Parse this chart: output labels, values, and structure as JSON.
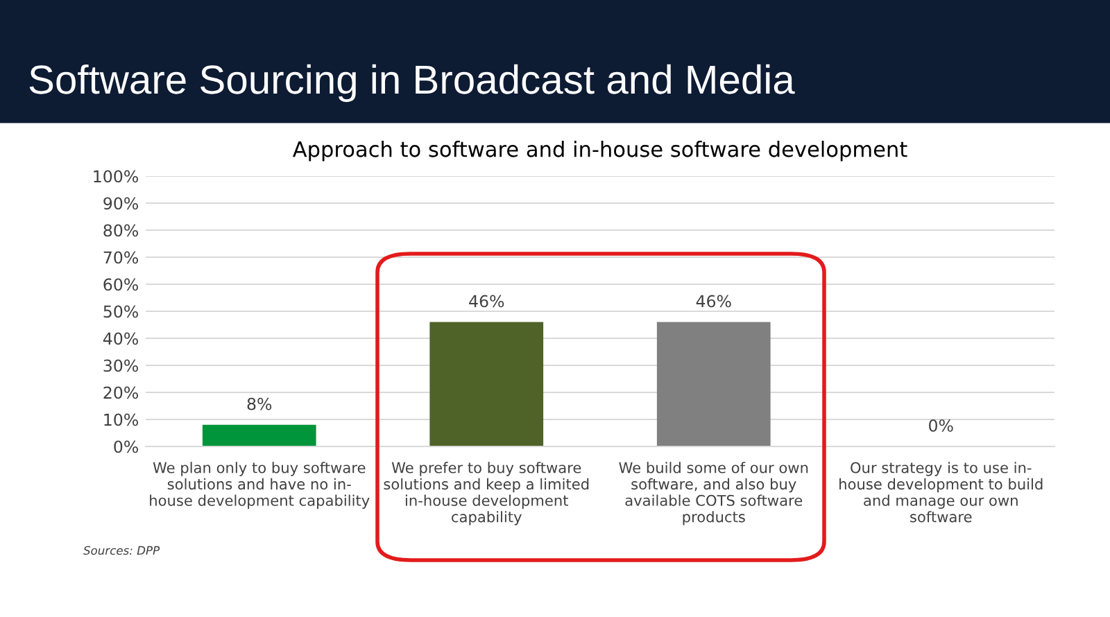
{
  "chart_data": {
    "type": "bar",
    "title": "Software Sourcing in Broadcast and Media",
    "subtitle": "Approach to software and in-house software development",
    "categories": [
      "We plan only to buy software\nsolutions and have no in-\nhouse development capability",
      "We prefer to buy software\nsolutions and keep a limited\nin-house development\ncapability",
      "We build some of our own\nsoftware, and also buy\navailable COTS software\nproducts",
      "Our strategy is to use in-\nhouse development to build\nand manage our own\nsoftware"
    ],
    "values": [
      8,
      46,
      46,
      0
    ],
    "colors": [
      "#00953a",
      "#4f6228",
      "#808080",
      "#808080"
    ],
    "value_labels": [
      "8%",
      "46%",
      "46%",
      "0%"
    ],
    "ylim": [
      0,
      100
    ],
    "yticks": [
      {
        "value": 0,
        "label": "0%"
      },
      {
        "value": 10,
        "label": "10%"
      },
      {
        "value": 20,
        "label": "20%"
      },
      {
        "value": 30,
        "label": "30%"
      },
      {
        "value": 40,
        "label": "40%"
      },
      {
        "value": 50,
        "label": "50%"
      },
      {
        "value": 60,
        "label": "60%"
      },
      {
        "value": 70,
        "label": "70%"
      },
      {
        "value": 80,
        "label": "80%"
      },
      {
        "value": 90,
        "label": "90%"
      },
      {
        "value": 100,
        "label": "100%"
      }
    ],
    "grid": "y",
    "annotations": [
      "Sources: DPP"
    ]
  }
}
